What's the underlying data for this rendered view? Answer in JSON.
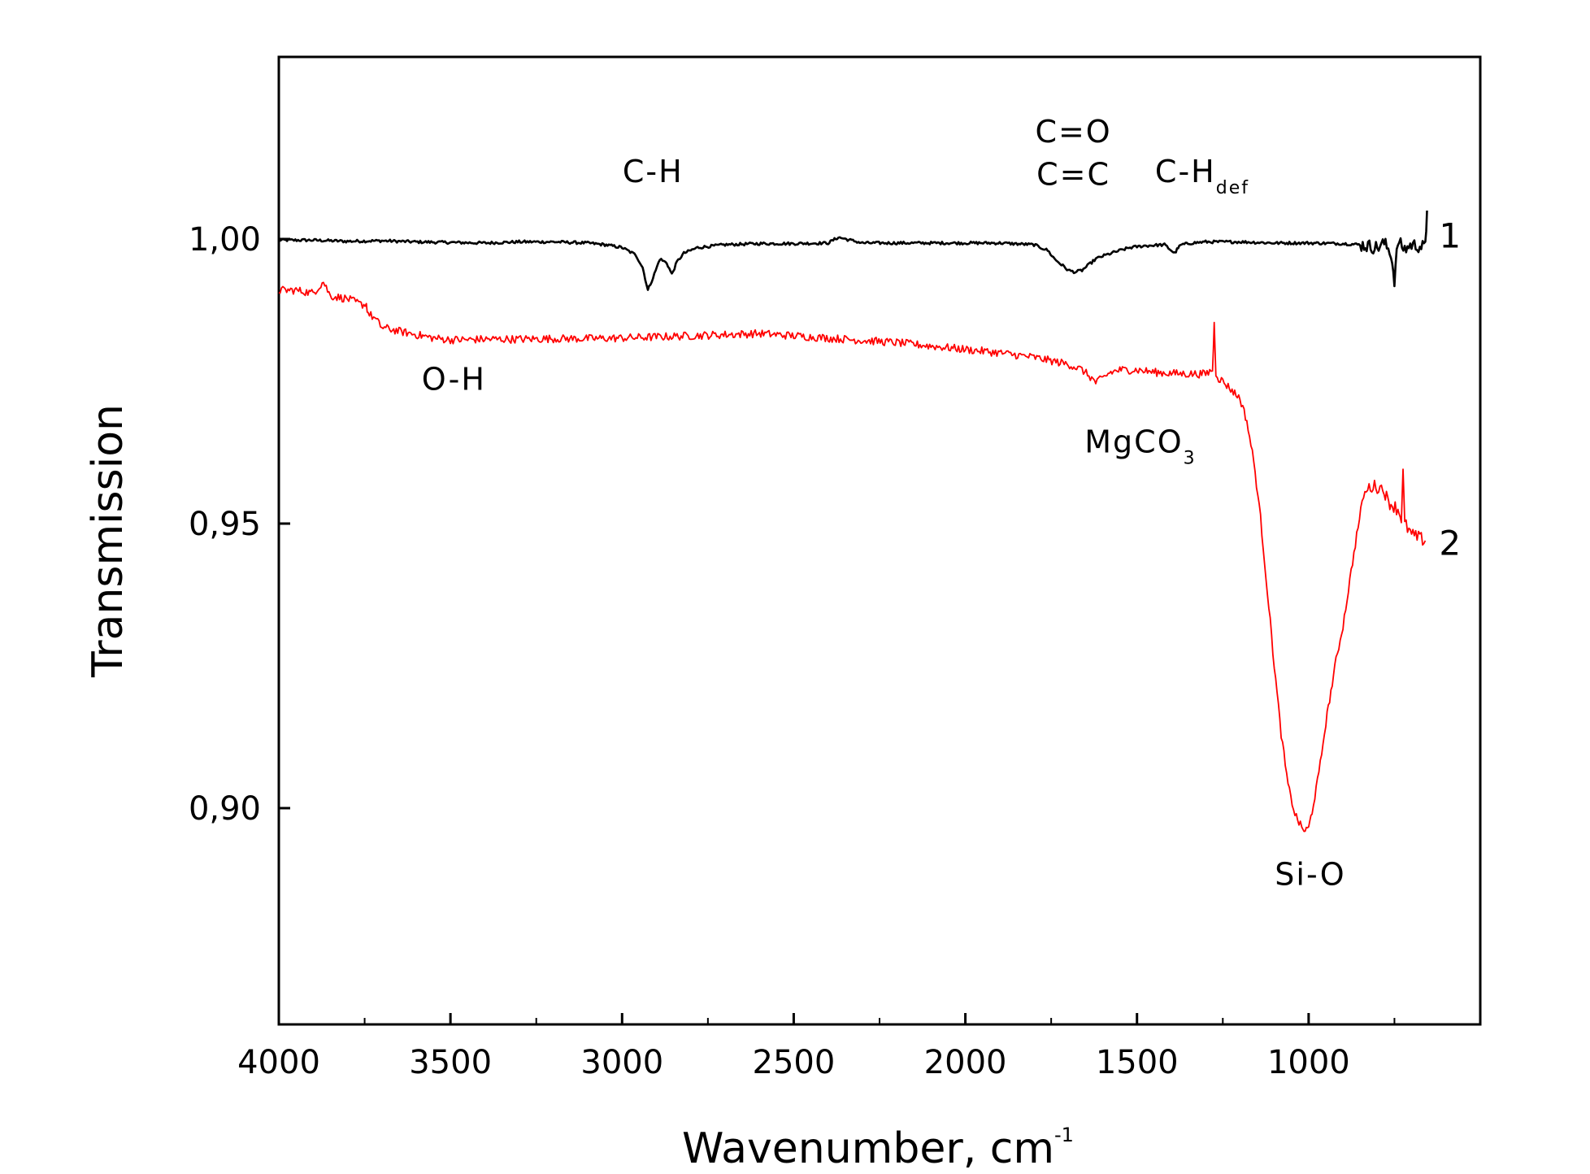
{
  "chart_data": {
    "type": "line",
    "title": "",
    "xlabel": "Wavenumber, cm",
    "xlabel_sup": "-1",
    "ylabel": "Transmission",
    "xlim": [
      4000,
      500
    ],
    "ylim": [
      0.862,
      1.032
    ],
    "x_reversed": true,
    "x_ticks": [
      4000,
      3500,
      3000,
      2500,
      2000,
      1500,
      1000
    ],
    "x_tick_labels": [
      "4000",
      "3500",
      "3000",
      "2500",
      "2000",
      "1500",
      "1000"
    ],
    "y_ticks": [
      1.0,
      0.95,
      0.9
    ],
    "y_tick_labels": [
      "1,00",
      "0,95",
      "0,90"
    ],
    "grid": false,
    "series": [
      {
        "name": "1",
        "color": "#000000",
        "x": [
          4000,
          3900,
          3800,
          3700,
          3600,
          3500,
          3400,
          3300,
          3200,
          3100,
          3050,
          3000,
          2960,
          2940,
          2925,
          2910,
          2890,
          2870,
          2855,
          2840,
          2820,
          2780,
          2700,
          2600,
          2500,
          2400,
          2370,
          2300,
          2200,
          2100,
          2000,
          1900,
          1800,
          1760,
          1740,
          1720,
          1700,
          1680,
          1660,
          1640,
          1620,
          1600,
          1560,
          1520,
          1480,
          1420,
          1390,
          1380,
          1370,
          1340,
          1300,
          1200,
          1100,
          1000,
          900,
          850,
          800,
          780,
          760,
          750,
          740,
          720,
          700,
          680,
          660,
          655
        ],
        "y": [
          0.9998,
          0.9998,
          0.9996,
          0.9997,
          0.9995,
          0.9994,
          0.9993,
          0.9995,
          0.9995,
          0.9993,
          0.999,
          0.9985,
          0.9972,
          0.995,
          0.991,
          0.9932,
          0.9965,
          0.9958,
          0.9938,
          0.996,
          0.9975,
          0.9985,
          0.999,
          0.9992,
          0.9992,
          0.9993,
          1.0003,
          0.9993,
          0.9993,
          0.9993,
          0.9993,
          0.9993,
          0.999,
          0.998,
          0.9965,
          0.9955,
          0.9945,
          0.9942,
          0.9945,
          0.9955,
          0.9965,
          0.997,
          0.9978,
          0.9985,
          0.9988,
          0.999,
          0.9975,
          0.9985,
          0.999,
          0.9993,
          0.9995,
          0.9995,
          0.9993,
          0.9993,
          0.9992,
          0.999,
          0.9985,
          0.9993,
          0.9975,
          0.9928,
          0.9995,
          0.9982,
          0.999,
          0.9988,
          0.9985,
          1.005
        ]
      },
      {
        "name": "2",
        "color": "#ff0000",
        "x": [
          4000,
          3950,
          3900,
          3870,
          3850,
          3800,
          3760,
          3745,
          3740,
          3720,
          3700,
          3650,
          3600,
          3550,
          3500,
          3450,
          3400,
          3300,
          3200,
          3100,
          3000,
          2900,
          2800,
          2700,
          2600,
          2500,
          2400,
          2300,
          2200,
          2100,
          2000,
          1900,
          1800,
          1700,
          1660,
          1640,
          1620,
          1600,
          1580,
          1550,
          1500,
          1450,
          1400,
          1350,
          1300,
          1280,
          1275,
          1270,
          1262,
          1250,
          1200,
          1180,
          1160,
          1140,
          1120,
          1100,
          1080,
          1060,
          1040,
          1020,
          1010,
          1000,
          990,
          970,
          950,
          920,
          900,
          880,
          860,
          840,
          820,
          800,
          780,
          770,
          760,
          740,
          730,
          725,
          720,
          700,
          680,
          660
        ],
        "y": [
          0.991,
          0.991,
          0.9905,
          0.9925,
          0.99,
          0.9895,
          0.9885,
          0.9885,
          0.987,
          0.986,
          0.9845,
          0.9838,
          0.9832,
          0.9826,
          0.9823,
          0.9823,
          0.9824,
          0.9824,
          0.9825,
          0.9825,
          0.9826,
          0.9828,
          0.983,
          0.9832,
          0.9834,
          0.983,
          0.9826,
          0.9822,
          0.9818,
          0.9812,
          0.9806,
          0.98,
          0.9792,
          0.978,
          0.977,
          0.976,
          0.9748,
          0.9755,
          0.9765,
          0.977,
          0.977,
          0.9766,
          0.9764,
          0.9763,
          0.9763,
          0.977,
          0.985,
          0.9765,
          0.9755,
          0.975,
          0.972,
          0.968,
          0.961,
          0.951,
          0.938,
          0.925,
          0.913,
          0.904,
          0.899,
          0.8965,
          0.896,
          0.8965,
          0.8995,
          0.906,
          0.915,
          0.926,
          0.932,
          0.94,
          0.948,
          0.955,
          0.9565,
          0.9565,
          0.956,
          0.954,
          0.9535,
          0.9525,
          0.951,
          0.959,
          0.95,
          0.948,
          0.9475,
          0.947
        ]
      }
    ],
    "annotations": [
      {
        "id": "ch",
        "text": "C-H",
        "x": 2910,
        "y": 1.01
      },
      {
        "id": "co",
        "text": "C=O",
        "x": 1685,
        "y": 1.017
      },
      {
        "id": "cc",
        "text": "C=C",
        "x": 1685,
        "y": 1.0095
      },
      {
        "id": "chdef",
        "text": "C-H",
        "sub": "def",
        "x": 1310,
        "y": 1.01
      },
      {
        "id": "oh",
        "text": "O-H",
        "x": 3490,
        "y": 0.9735
      },
      {
        "id": "mgco3",
        "text": "MgCO",
        "sub": "3",
        "x": 1490,
        "y": 0.9625
      },
      {
        "id": "sio",
        "text": "Si-O",
        "x": 995,
        "y": 0.8865
      }
    ],
    "curve_labels": [
      {
        "text": "1",
        "series": "1"
      },
      {
        "text": "2",
        "series": "2"
      }
    ]
  }
}
